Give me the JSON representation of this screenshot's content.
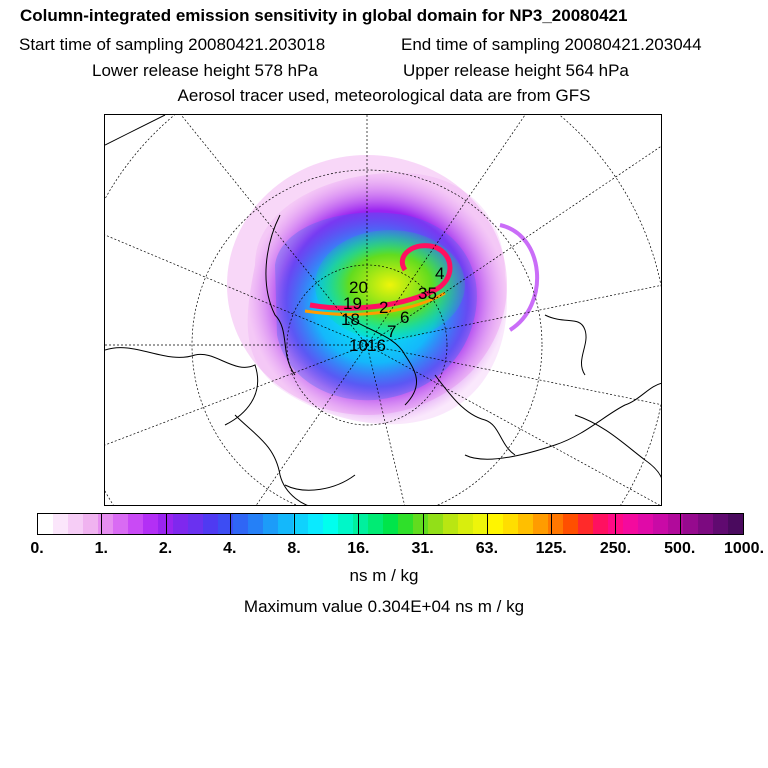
{
  "header": {
    "title": "Column-integrated emission sensitivity in global domain for NP3_20080421",
    "start_time": "Start time of sampling 20080421.203018",
    "end_time": "End time of sampling 20080421.203044",
    "lower_height": "Lower release height  578 hPa",
    "upper_height": "Upper release height  564 hPa",
    "tracer_note": "Aerosol tracer used, meteorological data are from GFS"
  },
  "map": {
    "markers": [
      "20",
      "19",
      "18",
      "2",
      "6",
      "4",
      "35",
      "7",
      "10",
      "16"
    ]
  },
  "colorbar": {
    "ticks": [
      "0.",
      "1.",
      "2.",
      "4.",
      "8.",
      "16.",
      "31.",
      "63.",
      "125.",
      "250.",
      "500.",
      "1000."
    ],
    "colors": [
      "#ffffff",
      "#fbe6fb",
      "#f6cdf6",
      "#f0b3f0",
      "#e68ef0",
      "#d96bf3",
      "#c94af5",
      "#b32ff5",
      "#9a24f0",
      "#7f28ee",
      "#6a31f0",
      "#4f3af2",
      "#3d4df3",
      "#2f66f5",
      "#2580f7",
      "#1c9cf9",
      "#14b8fb",
      "#0fd2fd",
      "#0aeaff",
      "#00ffee",
      "#00f7c8",
      "#00f09e",
      "#00eb74",
      "#00e54a",
      "#2fe02a",
      "#62dc1f",
      "#92df18",
      "#b9e612",
      "#d8ee0d",
      "#eef50a",
      "#fff500",
      "#ffde00",
      "#ffbf00",
      "#ff9c00",
      "#ff7700",
      "#ff4f00",
      "#ff2a2a",
      "#ff1060",
      "#ff0a86",
      "#f40a9e",
      "#e00aa8",
      "#c90aa6",
      "#b10a9b",
      "#960a8e",
      "#7c0a80",
      "#600a70",
      "#4a0a5e"
    ],
    "units": "ns m / kg"
  },
  "footer": {
    "max_value": "Maximum value  0.304E+04 ns m / kg"
  }
}
